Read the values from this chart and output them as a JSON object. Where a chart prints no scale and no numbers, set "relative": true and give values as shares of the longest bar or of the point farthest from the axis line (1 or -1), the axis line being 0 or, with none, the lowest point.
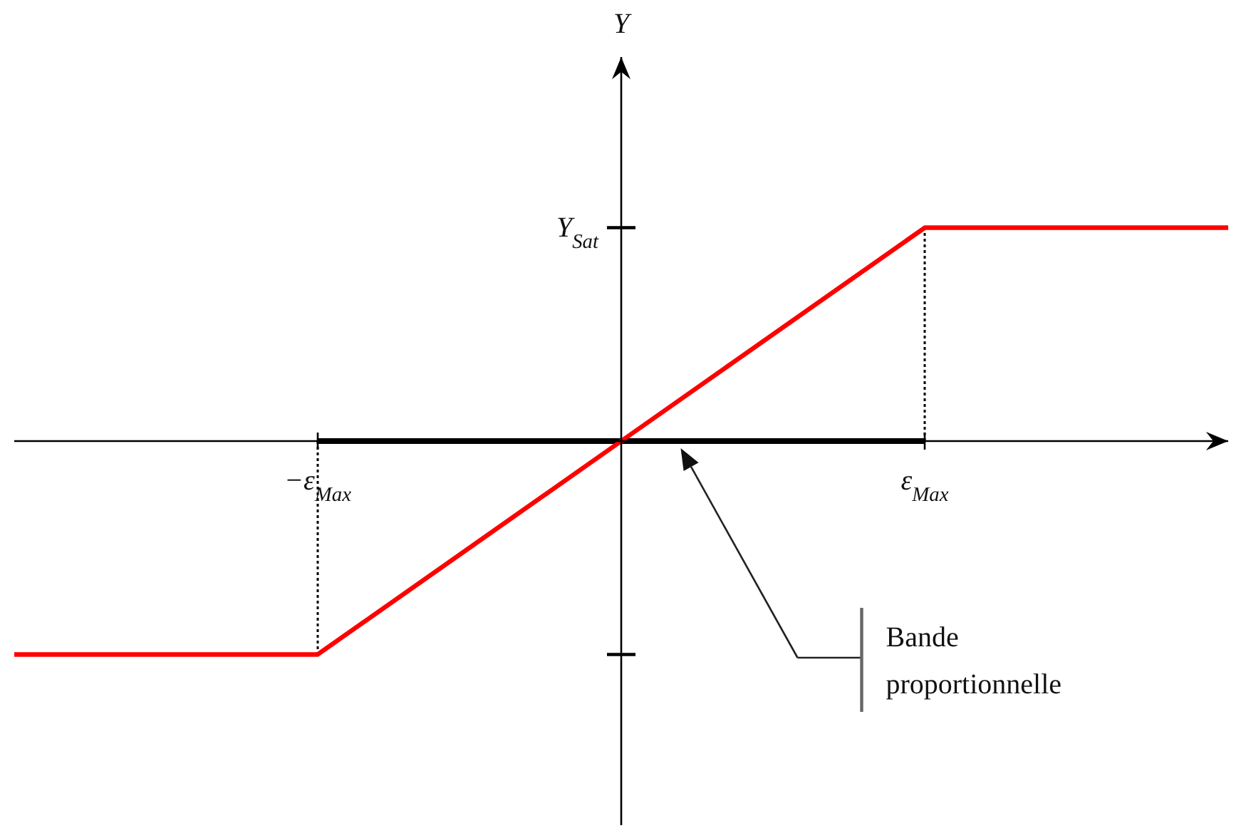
{
  "chart_data": {
    "type": "line",
    "relative": true,
    "categories": [
      null,
      "−ε$_{Max}$",
      null,
      "ε$_{Max}$",
      null
    ],
    "series": [
      {
        "color": "#000000",
        "values": [
          null,
          0,
          0,
          0,
          null
        ]
      },
      {
        "color": "#ff0000",
        "values": [
          -1,
          -1,
          0,
          1,
          1
        ]
      }
    ],
    "ref_lines": [
      {
        "axis": "x",
        "value": "−ε$_{Max}$",
        "color": "#000000",
        "line_style": "dotted"
      },
      {
        "axis": "x",
        "value": "ε$_{Max}$",
        "color": "#000000",
        "line_style": "dotted"
      }
    ],
    "annotations": [
      "Y",
      "Y$_{Sat}$",
      "Bande proportionnelle"
    ]
  }
}
